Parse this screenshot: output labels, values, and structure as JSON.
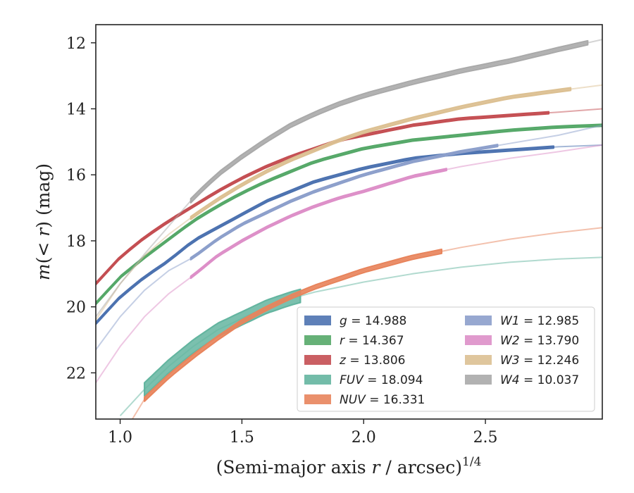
{
  "chart_data": {
    "type": "line",
    "xlabel": "(Semi-major axis r / arcsec)^1/4",
    "ylabel": "m(< r) (mag)",
    "xlim": [
      0.9,
      2.98
    ],
    "ylim": [
      23.4,
      11.45
    ],
    "y_inverted": true,
    "xticks": [
      1.0,
      1.5,
      2.0,
      2.5
    ],
    "xtick_labels": [
      "1.0",
      "1.5",
      "2.0",
      "2.5"
    ],
    "yticks": [
      12,
      14,
      16,
      18,
      20,
      22
    ],
    "ytick_labels": [
      "12",
      "14",
      "16",
      "18",
      "20",
      "22"
    ],
    "grid": false,
    "legend_position": "lower-right",
    "series": [
      {
        "name": "g = 14.988",
        "color": "#4c72b0",
        "x": [
          0.9,
          1.0,
          1.1,
          1.2,
          1.3,
          1.4,
          1.5,
          1.6,
          1.7,
          1.8,
          1.9,
          2.0,
          2.2,
          2.4,
          2.6,
          2.8,
          2.98
        ],
        "y": [
          20.5,
          19.7,
          19.1,
          18.6,
          18.0,
          17.6,
          17.2,
          16.8,
          16.5,
          16.2,
          16.0,
          15.8,
          15.5,
          15.35,
          15.25,
          15.15,
          15.1
        ],
        "band": {
          "x": [
            0.9,
            2.78
          ],
          "width": 0.06
        }
      },
      {
        "name": "r = 14.367",
        "color": "#55a868",
        "x": [
          0.9,
          1.0,
          1.1,
          1.2,
          1.3,
          1.4,
          1.5,
          1.6,
          1.7,
          1.8,
          1.9,
          2.0,
          2.2,
          2.4,
          2.6,
          2.8,
          2.98
        ],
        "y": [
          19.9,
          19.1,
          18.5,
          17.95,
          17.4,
          16.95,
          16.55,
          16.2,
          15.9,
          15.6,
          15.4,
          15.2,
          14.95,
          14.8,
          14.65,
          14.55,
          14.5
        ],
        "band": {
          "x": [
            0.9,
            2.98
          ],
          "width": 0.06
        }
      },
      {
        "name": "z = 13.806",
        "color": "#c44e52",
        "x": [
          0.9,
          1.0,
          1.1,
          1.2,
          1.3,
          1.4,
          1.5,
          1.6,
          1.7,
          1.8,
          1.9,
          2.0,
          2.2,
          2.4,
          2.6,
          2.8,
          2.98
        ],
        "y": [
          19.3,
          18.5,
          17.9,
          17.4,
          16.95,
          16.5,
          16.1,
          15.75,
          15.45,
          15.2,
          14.95,
          14.8,
          14.5,
          14.3,
          14.2,
          14.1,
          14.0
        ],
        "band": {
          "x": [
            0.9,
            2.76
          ],
          "width": 0.06
        }
      },
      {
        "name": "FUV = 18.094",
        "color": "#64b5a0",
        "x": [
          1.0,
          1.1,
          1.2,
          1.3,
          1.4,
          1.5,
          1.6,
          1.7,
          1.8,
          1.9,
          2.0,
          2.2,
          2.4,
          2.6,
          2.8,
          2.98
        ],
        "y": [
          23.3,
          22.5,
          21.8,
          21.2,
          20.7,
          20.35,
          20.0,
          19.75,
          19.55,
          19.4,
          19.25,
          19.0,
          18.8,
          18.65,
          18.55,
          18.5
        ],
        "band": {
          "x": [
            1.1,
            1.74
          ],
          "width": 0.4
        }
      },
      {
        "name": "NUV = 16.331",
        "color": "#e8845c",
        "x": [
          1.05,
          1.1,
          1.2,
          1.3,
          1.4,
          1.5,
          1.6,
          1.7,
          1.8,
          1.9,
          2.0,
          2.2,
          2.4,
          2.6,
          2.8,
          2.98
        ],
        "y": [
          23.4,
          22.8,
          22.1,
          21.5,
          20.95,
          20.45,
          20.05,
          19.7,
          19.4,
          19.15,
          18.9,
          18.5,
          18.2,
          17.95,
          17.75,
          17.6
        ],
        "band": {
          "x": [
            1.1,
            2.32
          ],
          "width": 0.12
        }
      },
      {
        "name": "W1 = 12.985",
        "color": "#8c9fcb",
        "x": [
          0.9,
          1.0,
          1.1,
          1.2,
          1.3,
          1.4,
          1.5,
          1.6,
          1.7,
          1.8,
          1.9,
          2.0,
          2.2,
          2.4,
          2.6,
          2.8,
          2.98
        ],
        "y": [
          21.3,
          20.3,
          19.5,
          18.9,
          18.5,
          17.95,
          17.5,
          17.15,
          16.8,
          16.5,
          16.25,
          16.0,
          15.6,
          15.3,
          15.05,
          14.8,
          14.5
        ],
        "band": {
          "x": [
            1.29,
            2.55
          ],
          "width": 0.06
        }
      },
      {
        "name": "W2 = 13.790",
        "color": "#dd8fc8",
        "x": [
          0.9,
          1.0,
          1.1,
          1.2,
          1.3,
          1.4,
          1.5,
          1.6,
          1.7,
          1.8,
          1.9,
          2.0,
          2.2,
          2.4,
          2.6,
          2.8,
          2.98
        ],
        "y": [
          22.3,
          21.2,
          20.3,
          19.6,
          19.05,
          18.45,
          18.0,
          17.6,
          17.25,
          16.95,
          16.7,
          16.5,
          16.05,
          15.75,
          15.5,
          15.3,
          15.1
        ],
        "band": {
          "x": [
            1.29,
            2.34
          ],
          "width": 0.06
        }
      },
      {
        "name": "W3 = 12.246",
        "color": "#dcc092",
        "x": [
          0.9,
          1.0,
          1.1,
          1.2,
          1.3,
          1.4,
          1.5,
          1.6,
          1.7,
          1.8,
          1.9,
          2.0,
          2.2,
          2.4,
          2.6,
          2.8,
          2.98
        ],
        "y": [
          20.4,
          19.3,
          18.45,
          17.8,
          17.25,
          16.75,
          16.3,
          15.9,
          15.55,
          15.25,
          14.95,
          14.7,
          14.3,
          13.95,
          13.65,
          13.45,
          13.28
        ],
        "band": {
          "x": [
            1.29,
            2.85
          ],
          "width": 0.08
        }
      },
      {
        "name": "W4 = 10.037",
        "color": "#aaaaaa",
        "x": [
          0.9,
          1.0,
          1.1,
          1.2,
          1.3,
          1.4,
          1.5,
          1.6,
          1.7,
          1.8,
          1.9,
          2.0,
          2.2,
          2.4,
          2.6,
          2.8,
          2.98
        ],
        "y": [
          20.3,
          19.3,
          18.4,
          17.55,
          16.7,
          16.0,
          15.45,
          14.95,
          14.5,
          14.15,
          13.85,
          13.6,
          13.2,
          12.85,
          12.55,
          12.2,
          11.9
        ],
        "band": {
          "x": [
            1.29,
            2.92
          ],
          "width": 0.12
        }
      }
    ]
  }
}
